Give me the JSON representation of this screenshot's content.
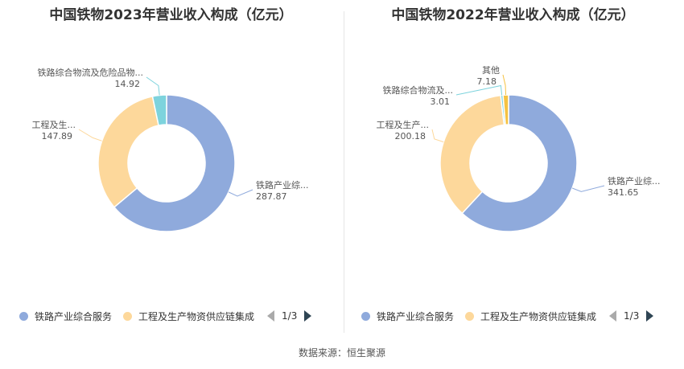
{
  "colors": {
    "blue": "#8faadc",
    "orange": "#fdd89b",
    "cyan": "#7dd3dd",
    "yellow": "#f5c242",
    "arrow_inactive": "#aaaaaa",
    "arrow_active": "#2f4554"
  },
  "legend": {
    "items": [
      "铁路产业综合服务",
      "工程及生产物资供应链集成"
    ],
    "page": "1/3"
  },
  "source": "数据来源：恒生聚源",
  "chart_data": [
    {
      "type": "pie",
      "title": "中国铁物2023年营业收入构成（亿元）",
      "slices": [
        {
          "name": "铁路产业综合服务",
          "label": "铁路产业综...",
          "value": 287.87,
          "value_text": "287.87",
          "color": "#8faadc"
        },
        {
          "name": "工程及生产物资供应链集成",
          "label": "工程及生...",
          "value": 147.89,
          "value_text": "147.89",
          "color": "#fdd89b"
        },
        {
          "name": "铁路综合物流及危险品物流",
          "label": "铁路综合物流及危险品物...",
          "value": 14.92,
          "value_text": "14.92",
          "color": "#7dd3dd"
        }
      ]
    },
    {
      "type": "pie",
      "title": "中国铁物2022年营业收入构成（亿元）",
      "slices": [
        {
          "name": "铁路产业综合服务",
          "label": "铁路产业综...",
          "value": 341.65,
          "value_text": "341.65",
          "color": "#8faadc"
        },
        {
          "name": "工程及生产物资供应链集成",
          "label": "工程及生产...",
          "value": 200.18,
          "value_text": "200.18",
          "color": "#fdd89b"
        },
        {
          "name": "铁路综合物流及危险品物流",
          "label": "铁路综合物流及...",
          "value": 3.01,
          "value_text": "3.01",
          "color": "#7dd3dd"
        },
        {
          "name": "其他",
          "label": "其他",
          "value": 7.18,
          "value_text": "7.18",
          "color": "#f5c242"
        }
      ]
    }
  ]
}
